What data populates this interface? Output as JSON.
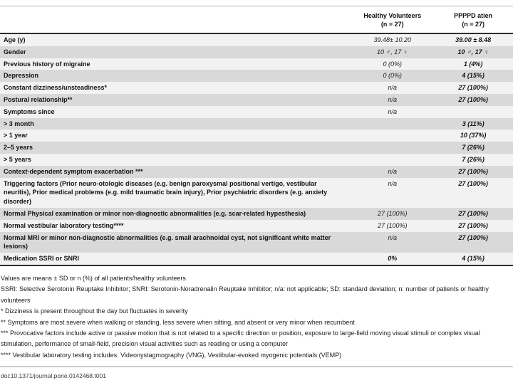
{
  "table": {
    "header": {
      "col_healthy": "Healthy Volunteers",
      "col_healthy_n": "(n = 27)",
      "col_pppd": "PPPPD atien",
      "col_pppd_n": "(n = 27)"
    },
    "rows": [
      {
        "label": "Age (y)",
        "healthy": "39.48± 10.20",
        "pppd": "39.00 ± 8.48"
      },
      {
        "label": "Gender",
        "healthy": "10 ♂, 17 ♀",
        "pppd": "10 ♂, 17 ♀"
      },
      {
        "label": "Previous history of migraine",
        "healthy": "0 (0%)",
        "pppd": "1 (4%)"
      },
      {
        "label": "Depression",
        "healthy": "0 (0%)",
        "pppd": "4 (15%)"
      },
      {
        "label": "Constant dizziness/unsteadiness*",
        "healthy": "n/a",
        "pppd": "27 (100%)"
      },
      {
        "label": "Postural relationship**",
        "healthy": "n/a",
        "pppd": "27 (100%)"
      },
      {
        "label": "Symptoms since",
        "healthy": "n/a",
        "pppd": ""
      },
      {
        "label": "> 3 month",
        "healthy": "",
        "pppd": "3 (11%)"
      },
      {
        "label": "> 1 year",
        "healthy": "",
        "pppd": "10 (37%)"
      },
      {
        "label": "2–5 years",
        "healthy": "",
        "pppd": "7 (26%)"
      },
      {
        "label": "> 5 years",
        "healthy": "",
        "pppd": "7 (26%)"
      },
      {
        "label": "Context-dependent symptom exacerbation ***",
        "healthy": "n/a",
        "pppd": "27 (100%)"
      },
      {
        "label": "Triggering factors (Prior neuro-otologic diseases (e.g. benign paroxysmal positional vertigo, vestibular neuritis), Prior medical problems (e.g. mild traumatic brain injury), Prior psychiatric disorders (e.g. anxiety disorder)",
        "healthy": "n/a",
        "pppd": "27 (100%)"
      },
      {
        "label": "Normal Physical examination or minor non-diagnostic abnormalities (e.g. scar-related hypesthesia)",
        "healthy": "27 (100%)",
        "pppd": "27 (100%)"
      },
      {
        "label": "Normal vestibular laboratory testing****",
        "healthy": "27 (100%)",
        "pppd": "27 (100%)"
      },
      {
        "label": "Normal MRI or minor non-diagnostic abnormalities (e.g. small arachnoidal cyst, not significant white matter lesions)",
        "healthy": "n/a",
        "pppd": "27 (100%)"
      },
      {
        "label": "Medication SSRI or SNRI",
        "healthy": "0%",
        "pppd": "4 (15%)",
        "healthy_bold": true
      }
    ]
  },
  "footnotes": [
    "Values are means ± SD or n (%) of all patients/healthy volunteers",
    "SSRI: Selective Serotonin Reuptake Inhibitor; SNRI: Serotonin-Noradrenalin Reuptake Inhibitor; n/a: not applicable; SD: standard deviation; n: number of patients or healthy volunteers",
    "* Dizziness is present throughout the day but fluctuates in severity",
    "** Symptoms are most severe when walking or standing, less severe when sitting, and absent or very minor when recumbent",
    "*** Provocative factors include active or passive motion that is not related to a specific direction or position, exposure to large-field moving visual stimuli or complex visual stimulation, performance of small-field, precision visual activities such as reading or using a computer",
    "**** Vestibular laboratory testing includes: Videonystagmography (VNG), Vestibular-evoked myogenic potentials (VEMP)"
  ],
  "doi": "doi:10.1371/journal.pone.0142468.t001",
  "colors": {
    "row_light": "#f2f2f2",
    "row_dark": "#d9d9d9",
    "rule_dark": "#2e2e2e",
    "rule_light": "#b3b3b3"
  }
}
